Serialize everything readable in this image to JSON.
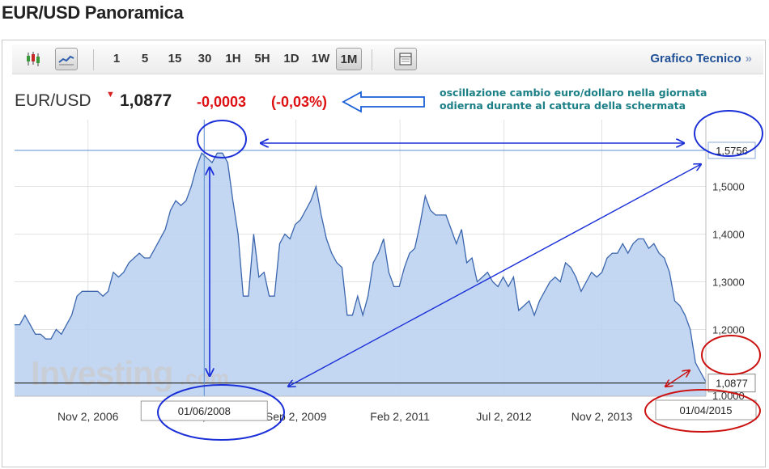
{
  "page": {
    "title": "EUR/USD Panoramica"
  },
  "toolbar": {
    "candles_icon": "candlestick-icon",
    "line_icon": "line-chart-icon",
    "table_icon": "table-icon",
    "timeframes": [
      "1",
      "5",
      "15",
      "30",
      "1H",
      "5H",
      "1D",
      "1W",
      "1M"
    ],
    "selected_timeframe": "1M",
    "technical_link": "Grafico Tecnico",
    "technical_chevron": "»"
  },
  "quote": {
    "symbol": "EUR/USD",
    "flag_icon": "down-marker-icon",
    "price": "1,0877",
    "change": "-0,0003",
    "change_pct": "(-0,03%)"
  },
  "annotation": {
    "line1": "oscillazione cambio euro/dollaro nella giornata",
    "line2": "odierna durante al cattura della schermata"
  },
  "colors": {
    "area_fill": "#bcd3f2",
    "area_line": "#3b66ad",
    "annotation_blue": "#1a2fd8",
    "annotation_red": "#cc1111",
    "annotation_text": "#1b7f86",
    "link": "#1f4f96"
  },
  "watermark": {
    "main": "Investing",
    "suffix": ".com"
  },
  "chart_data": {
    "type": "area",
    "x_unit": "month",
    "x_start": "2005-11",
    "x_end": "2015-04",
    "ylim": [
      1.06,
      1.64
    ],
    "y_ticks": [
      "1,2000",
      "1,3000",
      "1,4000",
      "1,5000"
    ],
    "y_tick_values": [
      1.2,
      1.3,
      1.4,
      1.5
    ],
    "y_bottom_tick_partial": "1,0000",
    "x_ticks": [
      "Nov 2, 2006",
      "Jun 2, 2008",
      "Sep 2, 2009",
      "Feb 2, 2011",
      "Jul 2, 2012",
      "Nov 2, 2013"
    ],
    "x_tick_months": [
      "2006-11",
      "2008-06",
      "2009-09",
      "2011-02",
      "2012-07",
      "2013-11"
    ],
    "values": [
      1.21,
      1.21,
      1.23,
      1.21,
      1.19,
      1.19,
      1.18,
      1.18,
      1.2,
      1.19,
      1.21,
      1.23,
      1.27,
      1.28,
      1.28,
      1.28,
      1.28,
      1.27,
      1.28,
      1.32,
      1.31,
      1.32,
      1.34,
      1.35,
      1.36,
      1.35,
      1.35,
      1.37,
      1.39,
      1.41,
      1.45,
      1.47,
      1.46,
      1.47,
      1.5,
      1.54,
      1.57,
      1.56,
      1.55,
      1.57,
      1.57,
      1.55,
      1.47,
      1.4,
      1.27,
      1.27,
      1.4,
      1.31,
      1.32,
      1.27,
      1.27,
      1.38,
      1.4,
      1.39,
      1.42,
      1.43,
      1.45,
      1.47,
      1.5,
      1.44,
      1.39,
      1.36,
      1.34,
      1.33,
      1.23,
      1.23,
      1.27,
      1.23,
      1.27,
      1.34,
      1.36,
      1.39,
      1.32,
      1.29,
      1.29,
      1.33,
      1.36,
      1.37,
      1.42,
      1.48,
      1.45,
      1.44,
      1.44,
      1.44,
      1.41,
      1.38,
      1.41,
      1.34,
      1.35,
      1.3,
      1.31,
      1.32,
      1.3,
      1.29,
      1.31,
      1.29,
      1.31,
      1.24,
      1.25,
      1.26,
      1.23,
      1.26,
      1.28,
      1.3,
      1.31,
      1.3,
      1.34,
      1.33,
      1.31,
      1.28,
      1.3,
      1.32,
      1.31,
      1.32,
      1.35,
      1.36,
      1.36,
      1.38,
      1.36,
      1.38,
      1.39,
      1.39,
      1.37,
      1.38,
      1.36,
      1.35,
      1.32,
      1.26,
      1.25,
      1.23,
      1.2,
      1.13,
      1.11,
      1.09
    ],
    "current_value": 1.0877,
    "current_label": "1,0877",
    "max_label": "1,5756",
    "max_value": 1.5756,
    "crosshair_month": "2008-06",
    "crosshair_label": "01/06/2008",
    "end_label": "01/04/2015"
  }
}
